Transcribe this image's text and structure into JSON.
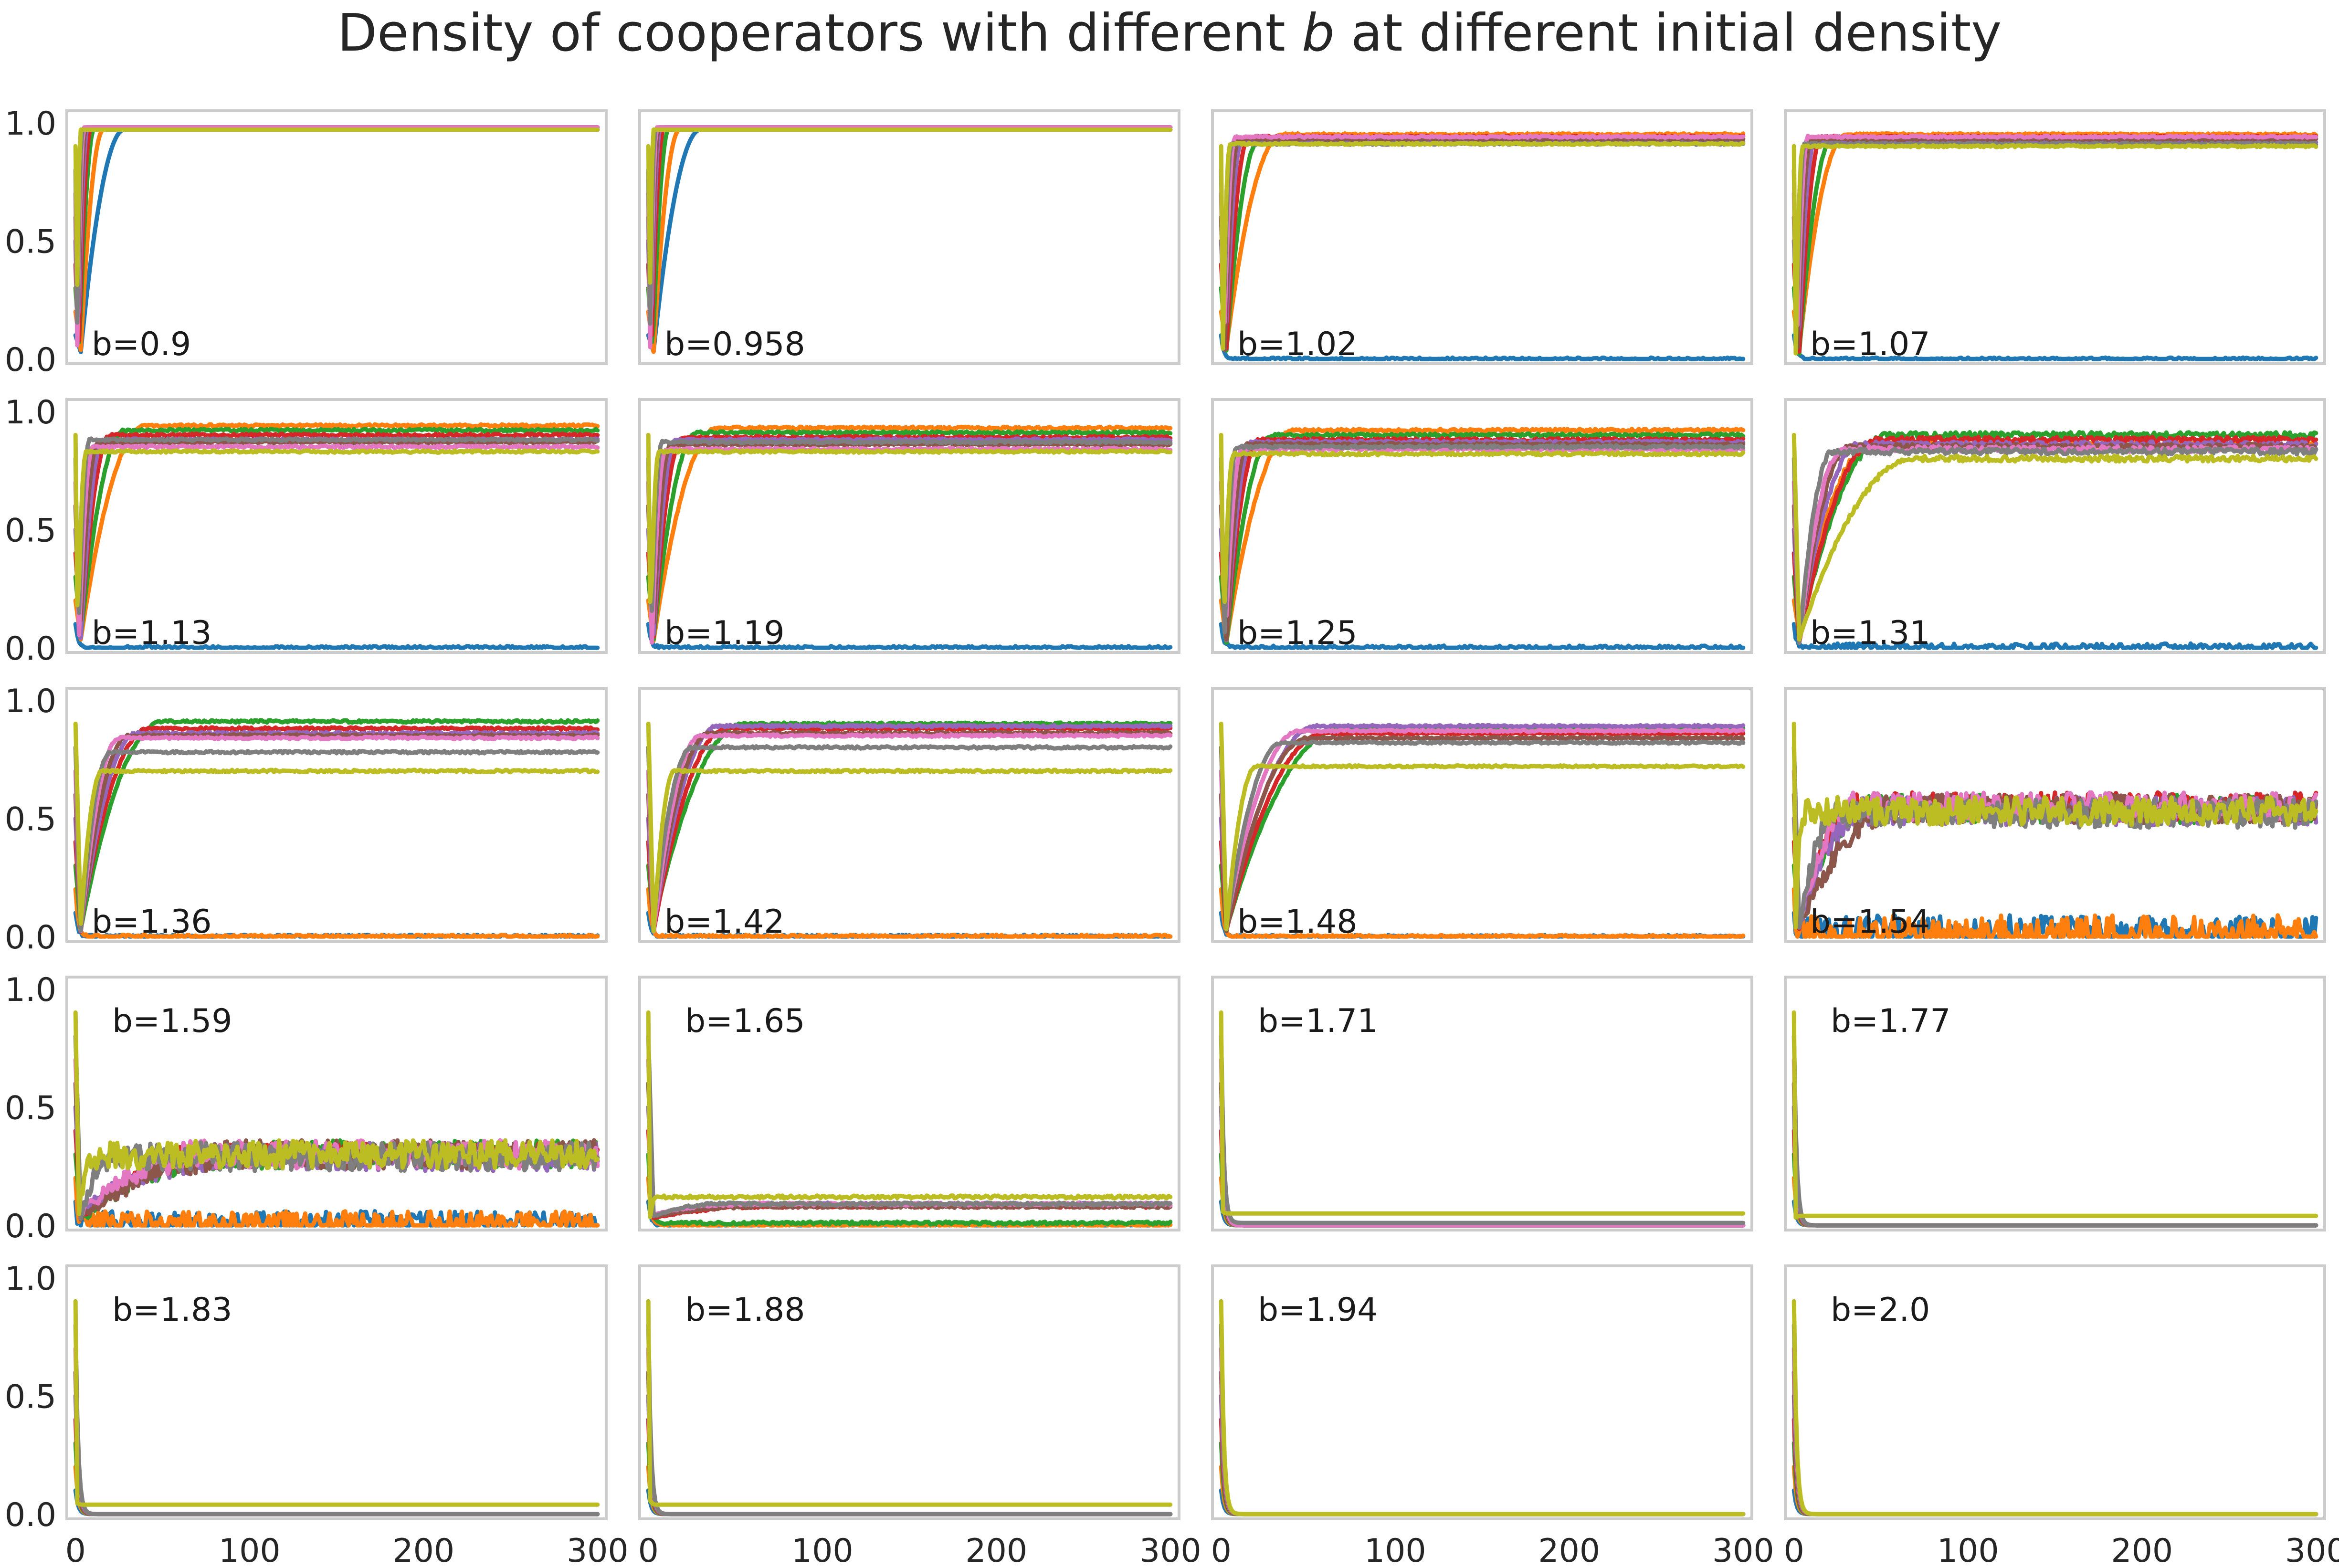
{
  "title_prefix": "Density of cooperators with different ",
  "title_var": "b",
  "title_suffix": " at different initial density",
  "chart_data": {
    "type": "line",
    "layout": "small-multiples 5x4",
    "x_ticks": [
      0,
      100,
      200,
      300
    ],
    "y_ticks": [
      "0.0",
      "0.5",
      "1.0"
    ],
    "xlim": [
      -5,
      305
    ],
    "ylim": [
      -0.02,
      1.05
    ],
    "grid": false,
    "colors": [
      "#1f77b4",
      "#ff7f0e",
      "#2ca02c",
      "#d62728",
      "#9467bd",
      "#8c564b",
      "#e377c2",
      "#7f7f7f",
      "#bcbd22"
    ],
    "series_initial_density": [
      0.1,
      0.2,
      0.3,
      0.4,
      0.5,
      0.6,
      0.7,
      0.8,
      0.9
    ],
    "panels": [
      {
        "b_label": "b=0.9",
        "label_position": "bottom-left",
        "final": [
          0.97,
          0.97,
          0.98,
          0.98,
          0.98,
          0.98,
          0.98,
          0.97,
          0.97
        ],
        "rise_time": [
          28,
          16,
          11,
          9,
          7,
          6,
          5,
          4,
          3
        ],
        "noise": 0
      },
      {
        "b_label": "b=0.958",
        "label_position": "bottom-left",
        "final": [
          0.97,
          0.97,
          0.98,
          0.98,
          0.98,
          0.98,
          0.98,
          0.97,
          0.97
        ],
        "rise_time": [
          30,
          18,
          12,
          9,
          7,
          6,
          5,
          4,
          3
        ],
        "noise": 0
      },
      {
        "b_label": "b=1.02",
        "label_position": "bottom-left",
        "final": [
          0.0,
          0.95,
          0.93,
          0.94,
          0.92,
          0.93,
          0.94,
          0.91,
          0.91
        ],
        "rise_time": [
          0,
          35,
          22,
          16,
          12,
          10,
          8,
          6,
          5
        ],
        "noise": 0.004
      },
      {
        "b_label": "b=1.07",
        "label_position": "bottom-left",
        "final": [
          0.0,
          0.95,
          0.93,
          0.94,
          0.92,
          0.93,
          0.94,
          0.91,
          0.9
        ],
        "rise_time": [
          0,
          30,
          22,
          16,
          12,
          10,
          8,
          6,
          5
        ],
        "noise": 0.004
      },
      {
        "b_label": "b=1.13",
        "label_position": "bottom-left",
        "final": [
          0.0,
          0.94,
          0.92,
          0.9,
          0.88,
          0.87,
          0.85,
          0.88,
          0.83
        ],
        "rise_time": [
          0,
          40,
          28,
          20,
          16,
          13,
          10,
          8,
          6
        ],
        "noise": 0.005
      },
      {
        "b_label": "b=1.19",
        "label_position": "bottom-left",
        "final": [
          0.0,
          0.93,
          0.91,
          0.89,
          0.88,
          0.86,
          0.84,
          0.87,
          0.83
        ],
        "rise_time": [
          0,
          40,
          28,
          20,
          16,
          13,
          10,
          8,
          6
        ],
        "noise": 0.005
      },
      {
        "b_label": "b=1.25",
        "label_position": "bottom-left",
        "final": [
          0.0,
          0.92,
          0.9,
          0.88,
          0.87,
          0.86,
          0.84,
          0.85,
          0.82
        ],
        "rise_time": [
          0,
          42,
          30,
          22,
          18,
          15,
          12,
          9,
          7
        ],
        "noise": 0.006
      },
      {
        "b_label": "b=1.31",
        "label_position": "bottom-left",
        "final": [
          0.0,
          0.86,
          0.9,
          0.88,
          0.86,
          0.85,
          0.84,
          0.83,
          0.8
        ],
        "rise_time": [
          0,
          45,
          55,
          48,
          38,
          32,
          28,
          22,
          70
        ],
        "noise": 0.012
      },
      {
        "b_label": "b=1.36",
        "label_position": "bottom-left",
        "final": [
          0.0,
          0.0,
          0.91,
          0.88,
          0.86,
          0.85,
          0.84,
          0.78,
          0.7
        ],
        "rise_time": [
          0,
          0,
          50,
          42,
          35,
          30,
          25,
          20,
          15
        ],
        "noise": 0.005
      },
      {
        "b_label": "b=1.42",
        "label_position": "bottom-left",
        "final": [
          0.0,
          0.0,
          0.9,
          0.88,
          0.89,
          0.86,
          0.85,
          0.8,
          0.7
        ],
        "rise_time": [
          0,
          0,
          55,
          45,
          40,
          35,
          30,
          25,
          15
        ],
        "noise": 0.005
      },
      {
        "b_label": "b=1.48",
        "label_position": "bottom-left",
        "final": [
          0.0,
          0.0,
          0.88,
          0.86,
          0.89,
          0.84,
          0.87,
          0.82,
          0.72
        ],
        "rise_time": [
          0,
          0,
          70,
          60,
          55,
          50,
          45,
          35,
          20
        ],
        "noise": 0.004
      },
      {
        "b_label": "b=1.54",
        "label_position": "bottom-left",
        "final": [
          0.0,
          0.0,
          0.54,
          0.55,
          0.53,
          0.54,
          0.55,
          0.52,
          0.53
        ],
        "rise_time": [
          0,
          0,
          40,
          38,
          42,
          60,
          35,
          25,
          5
        ],
        "noise": 0.06
      },
      {
        "b_label": "b=1.59",
        "label_position": "top-left",
        "final": [
          0.0,
          0.0,
          0.3,
          0.31,
          0.29,
          0.3,
          0.3,
          0.29,
          0.3
        ],
        "rise_time": [
          0,
          0,
          90,
          80,
          85,
          95,
          75,
          20,
          10
        ],
        "noise": 0.04
      },
      {
        "b_label": "b=1.65",
        "label_position": "top-left",
        "final": [
          0.0,
          0.0,
          0.01,
          0.08,
          0.09,
          0.08,
          0.09,
          0.09,
          0.12
        ],
        "rise_time": [
          0,
          0,
          0,
          70,
          60,
          65,
          55,
          40,
          4
        ],
        "noise": 0.004
      },
      {
        "b_label": "b=1.71",
        "label_position": "top-left",
        "final": [
          0.0,
          0.0,
          0.0,
          0.0,
          0.0,
          0.0,
          0.0,
          0.01,
          0.05
        ],
        "rise_time": [
          0,
          0,
          0,
          0,
          0,
          0,
          0,
          0,
          4
        ],
        "noise": 0
      },
      {
        "b_label": "b=1.77",
        "label_position": "top-left",
        "final": [
          0.0,
          0.0,
          0.0,
          0.0,
          0.0,
          0.0,
          0.0,
          0.0,
          0.04
        ],
        "rise_time": [
          0,
          0,
          0,
          0,
          0,
          0,
          0,
          0,
          4
        ],
        "noise": 0
      },
      {
        "b_label": "b=1.83",
        "label_position": "top-left",
        "final": [
          0.0,
          0.0,
          0.0,
          0.0,
          0.0,
          0.0,
          0.0,
          0.0,
          0.04
        ],
        "rise_time": [
          0,
          0,
          0,
          0,
          0,
          0,
          0,
          0,
          4
        ],
        "noise": 0
      },
      {
        "b_label": "b=1.88",
        "label_position": "top-left",
        "final": [
          0.0,
          0.0,
          0.0,
          0.0,
          0.0,
          0.0,
          0.0,
          0.0,
          0.04
        ],
        "rise_time": [
          0,
          0,
          0,
          0,
          0,
          0,
          0,
          0,
          4
        ],
        "noise": 0
      },
      {
        "b_label": "b=1.94",
        "label_position": "top-left",
        "final": [
          0.0,
          0.0,
          0.0,
          0.0,
          0.0,
          0.0,
          0.0,
          0.0,
          0.0
        ],
        "rise_time": [
          0,
          0,
          0,
          0,
          0,
          0,
          0,
          0,
          4
        ],
        "noise": 0
      },
      {
        "b_label": "b=2.0",
        "label_position": "top-left",
        "final": [
          0.0,
          0.0,
          0.0,
          0.0,
          0.0,
          0.0,
          0.0,
          0.0,
          0.0
        ],
        "rise_time": [
          0,
          0,
          0,
          0,
          0,
          0,
          0,
          0,
          4
        ],
        "noise": 0
      }
    ]
  }
}
